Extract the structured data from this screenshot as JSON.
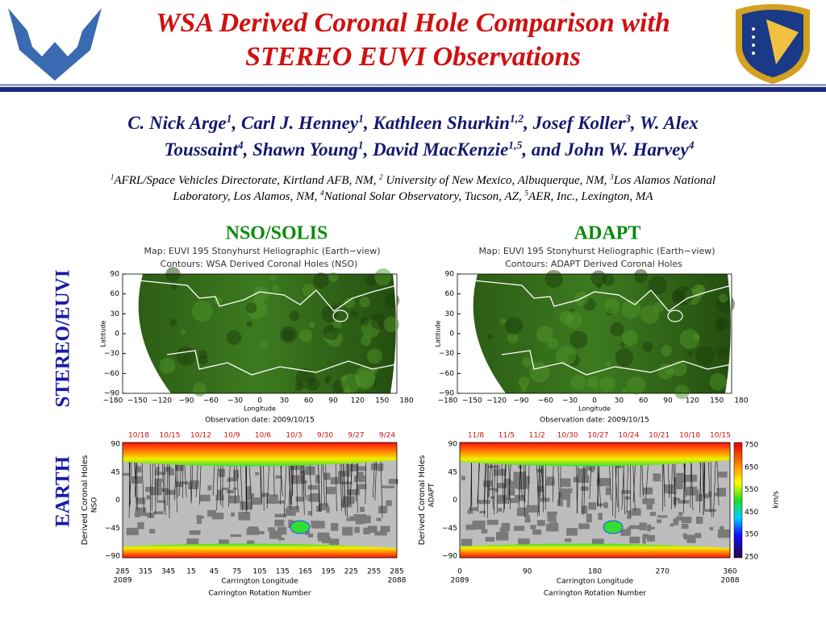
{
  "header": {
    "title_lines": [
      "WSA Derived Coronal Hole Comparison with",
      "STEREO EUVI Observations"
    ]
  },
  "authors": {
    "lines": [
      [
        {
          "text": "C. Nick Arge"
        },
        {
          "sup": "1"
        },
        {
          "text": ", Carl J. Henney"
        },
        {
          "sup": "1"
        },
        {
          "text": ", Kathleen Shurkin"
        },
        {
          "sup": "1,2"
        },
        {
          "text": ", Josef Koller"
        },
        {
          "sup": "3"
        },
        {
          "text": ", W. Alex"
        }
      ],
      [
        {
          "text": "Toussaint"
        },
        {
          "sup": "4"
        },
        {
          "text": ", Shawn Young"
        },
        {
          "sup": "1"
        },
        {
          "text": ", David MacKenzie"
        },
        {
          "sup": "1,5"
        },
        {
          "text": ", and John W. Harvey"
        },
        {
          "sup": "4"
        }
      ]
    ]
  },
  "affiliations": {
    "lines": [
      [
        {
          "sup": "1"
        },
        {
          "text": "AFRL/Space Vehicles Directorate, Kirtland AFB, NM, "
        },
        {
          "sup": "2"
        },
        {
          "text": " University of New Mexico, Albuquerque, NM, "
        },
        {
          "sup": "3"
        },
        {
          "text": "Los Alamos National"
        }
      ],
      [
        {
          "text": "Laboratory, Los Alamos, NM, "
        },
        {
          "sup": "4"
        },
        {
          "text": "National Solar Observatory, Tucson, AZ, "
        },
        {
          "sup": "5"
        },
        {
          "text": "AER, Inc., Lexington, MA"
        }
      ]
    ]
  },
  "row_labels": {
    "top": "STEREO/EUVI",
    "bottom": "EARTH"
  },
  "panels": [
    {
      "heading": "NSO/SOLIS",
      "map": {
        "title": "Map: EUVI 195 Stonyhurst Heliographic (Earth−view)",
        "contours": "Contours: WSA Derived Coronal Holes (NSO)",
        "y_label": "Latitude",
        "x_label": "Longitude",
        "y_ticks": [
          "90",
          "60",
          "30",
          "0",
          "−30",
          "−60",
          "−90"
        ],
        "x_ticks": [
          "−180",
          "−150",
          "−120",
          "−90",
          "−60",
          "−30",
          "0",
          "30",
          "60",
          "90",
          "120",
          "150",
          "180"
        ],
        "observation": "Observation date: 2009/10/15"
      },
      "carrington": {
        "dates": [
          "10/18",
          "10/15",
          "10/12",
          "10/9",
          "10/6",
          "10/3",
          "9/30",
          "9/27",
          "9/24"
        ],
        "y_label": "Derived Coronal Holes",
        "source": "NSO",
        "y_ticks": [
          "90",
          "45",
          "0",
          "−45",
          "−90"
        ],
        "x_ticks": [
          "285",
          "315",
          "345",
          "15",
          "45",
          "75",
          "105",
          "135",
          "165",
          "195",
          "225",
          "255",
          "285"
        ],
        "rotations": [
          "2089",
          "2088"
        ],
        "x_label": "Carrington Longitude",
        "x_sublabel": "Carrington Rotation Number"
      }
    },
    {
      "heading": "ADAPT",
      "map": {
        "title": "Map: EUVI 195 Stonyhurst Heliographic (Earth−view)",
        "contours": "Contours: ADAPT Derived Coronal Holes",
        "y_label": "Latitude",
        "x_label": "Longitude",
        "y_ticks": [
          "90",
          "60",
          "30",
          "0",
          "−30",
          "−60",
          "−90"
        ],
        "x_ticks": [
          "−180",
          "−150",
          "−120",
          "−90",
          "−60",
          "−30",
          "0",
          "30",
          "60",
          "90",
          "120",
          "150",
          "180"
        ],
        "observation": "Observation date: 2009/10/15"
      },
      "carrington": {
        "dates": [
          "11/8",
          "11/5",
          "11/2",
          "10/30",
          "10/27",
          "10/24",
          "10/21",
          "10/18",
          "10/15"
        ],
        "y_label": "Derived Coronal Holes",
        "source": "ADAPT",
        "y_ticks": [
          "90",
          "45",
          "0",
          "−45",
          "−90"
        ],
        "x_ticks": [
          "0",
          "90",
          "180",
          "270",
          "360"
        ],
        "rotations": [
          "2089",
          "2088"
        ],
        "x_label": "Carrington Longitude",
        "x_sublabel": "Carrington Rotation Number"
      }
    }
  ],
  "colorbar": {
    "ticks": [
      "750",
      "650",
      "550",
      "450",
      "350",
      "250"
    ],
    "unit": "km/s"
  }
}
